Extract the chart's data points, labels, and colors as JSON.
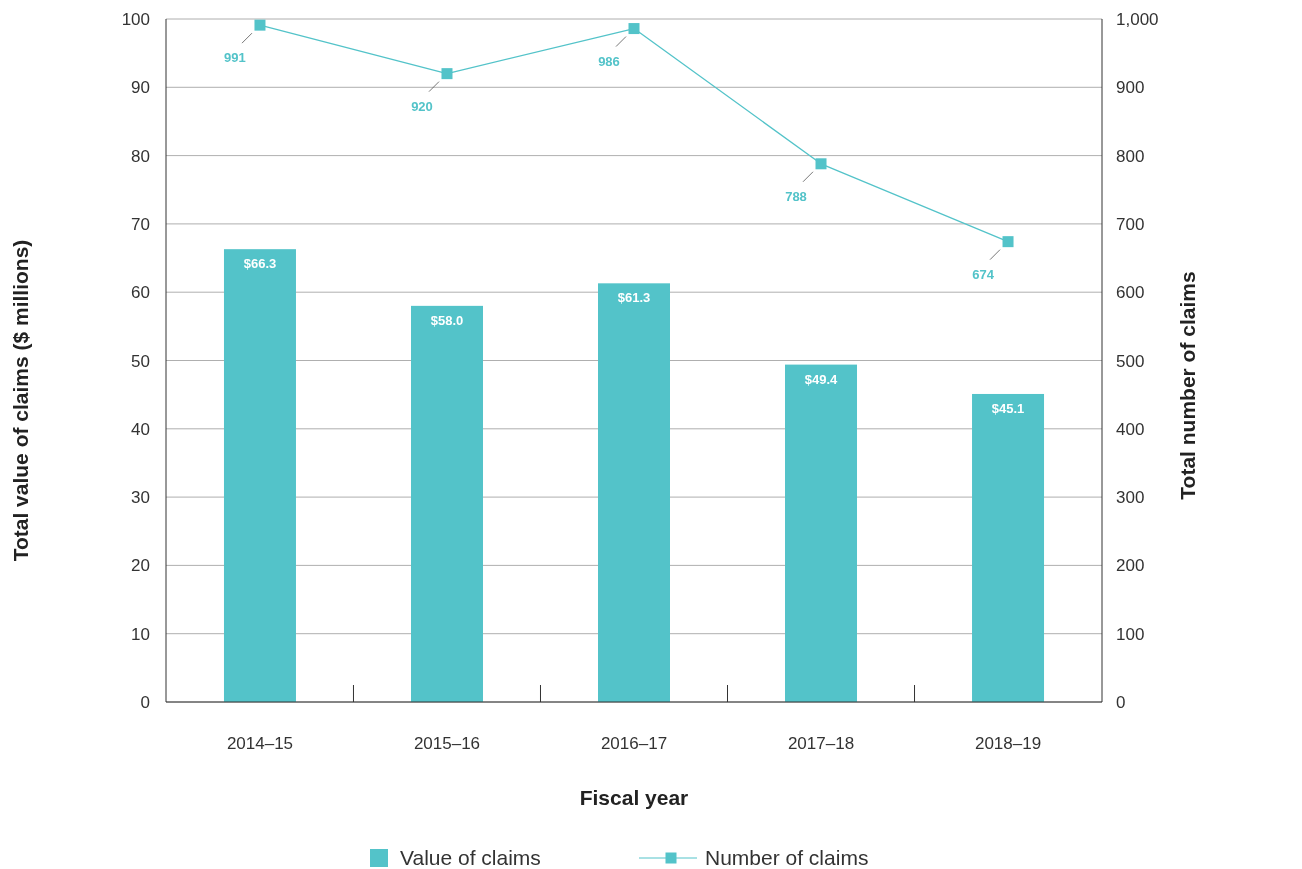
{
  "chart_data": {
    "type": "bar",
    "xlabel": "Fiscal year",
    "ylabel": "Total value of claims ($ millions)",
    "y2label": "Total number of claims",
    "categories": [
      "2014–15",
      "2015–16",
      "2016–17",
      "2017–18",
      "2018–19"
    ],
    "series": [
      {
        "name": "Value of claims",
        "color": "#53c3c9",
        "values": [
          66.3,
          58.0,
          61.3,
          49.4,
          45.1
        ],
        "value_labels": [
          "$66.3",
          "$58.0",
          "$61.3",
          "$49.4",
          "$45.1"
        ]
      },
      {
        "name": "Number of claims",
        "type": "line",
        "axis": "y2",
        "color": "#53c3c9",
        "marker": "square",
        "line_style": "solid",
        "values": [
          991,
          920,
          986,
          788,
          674
        ],
        "value_labels": [
          "991",
          "920",
          "986",
          "788",
          "674"
        ]
      }
    ],
    "ylim": [
      0,
      100
    ],
    "yticks": [
      0,
      10,
      20,
      30,
      40,
      50,
      60,
      70,
      80,
      90,
      100
    ],
    "y2lim": [
      0,
      1000
    ],
    "y2ticks": [
      0,
      100,
      200,
      300,
      400,
      500,
      600,
      700,
      800,
      900,
      {
        "value": 1000,
        "label": "1,000"
      }
    ],
    "grid": "y",
    "legend": "bottom"
  }
}
